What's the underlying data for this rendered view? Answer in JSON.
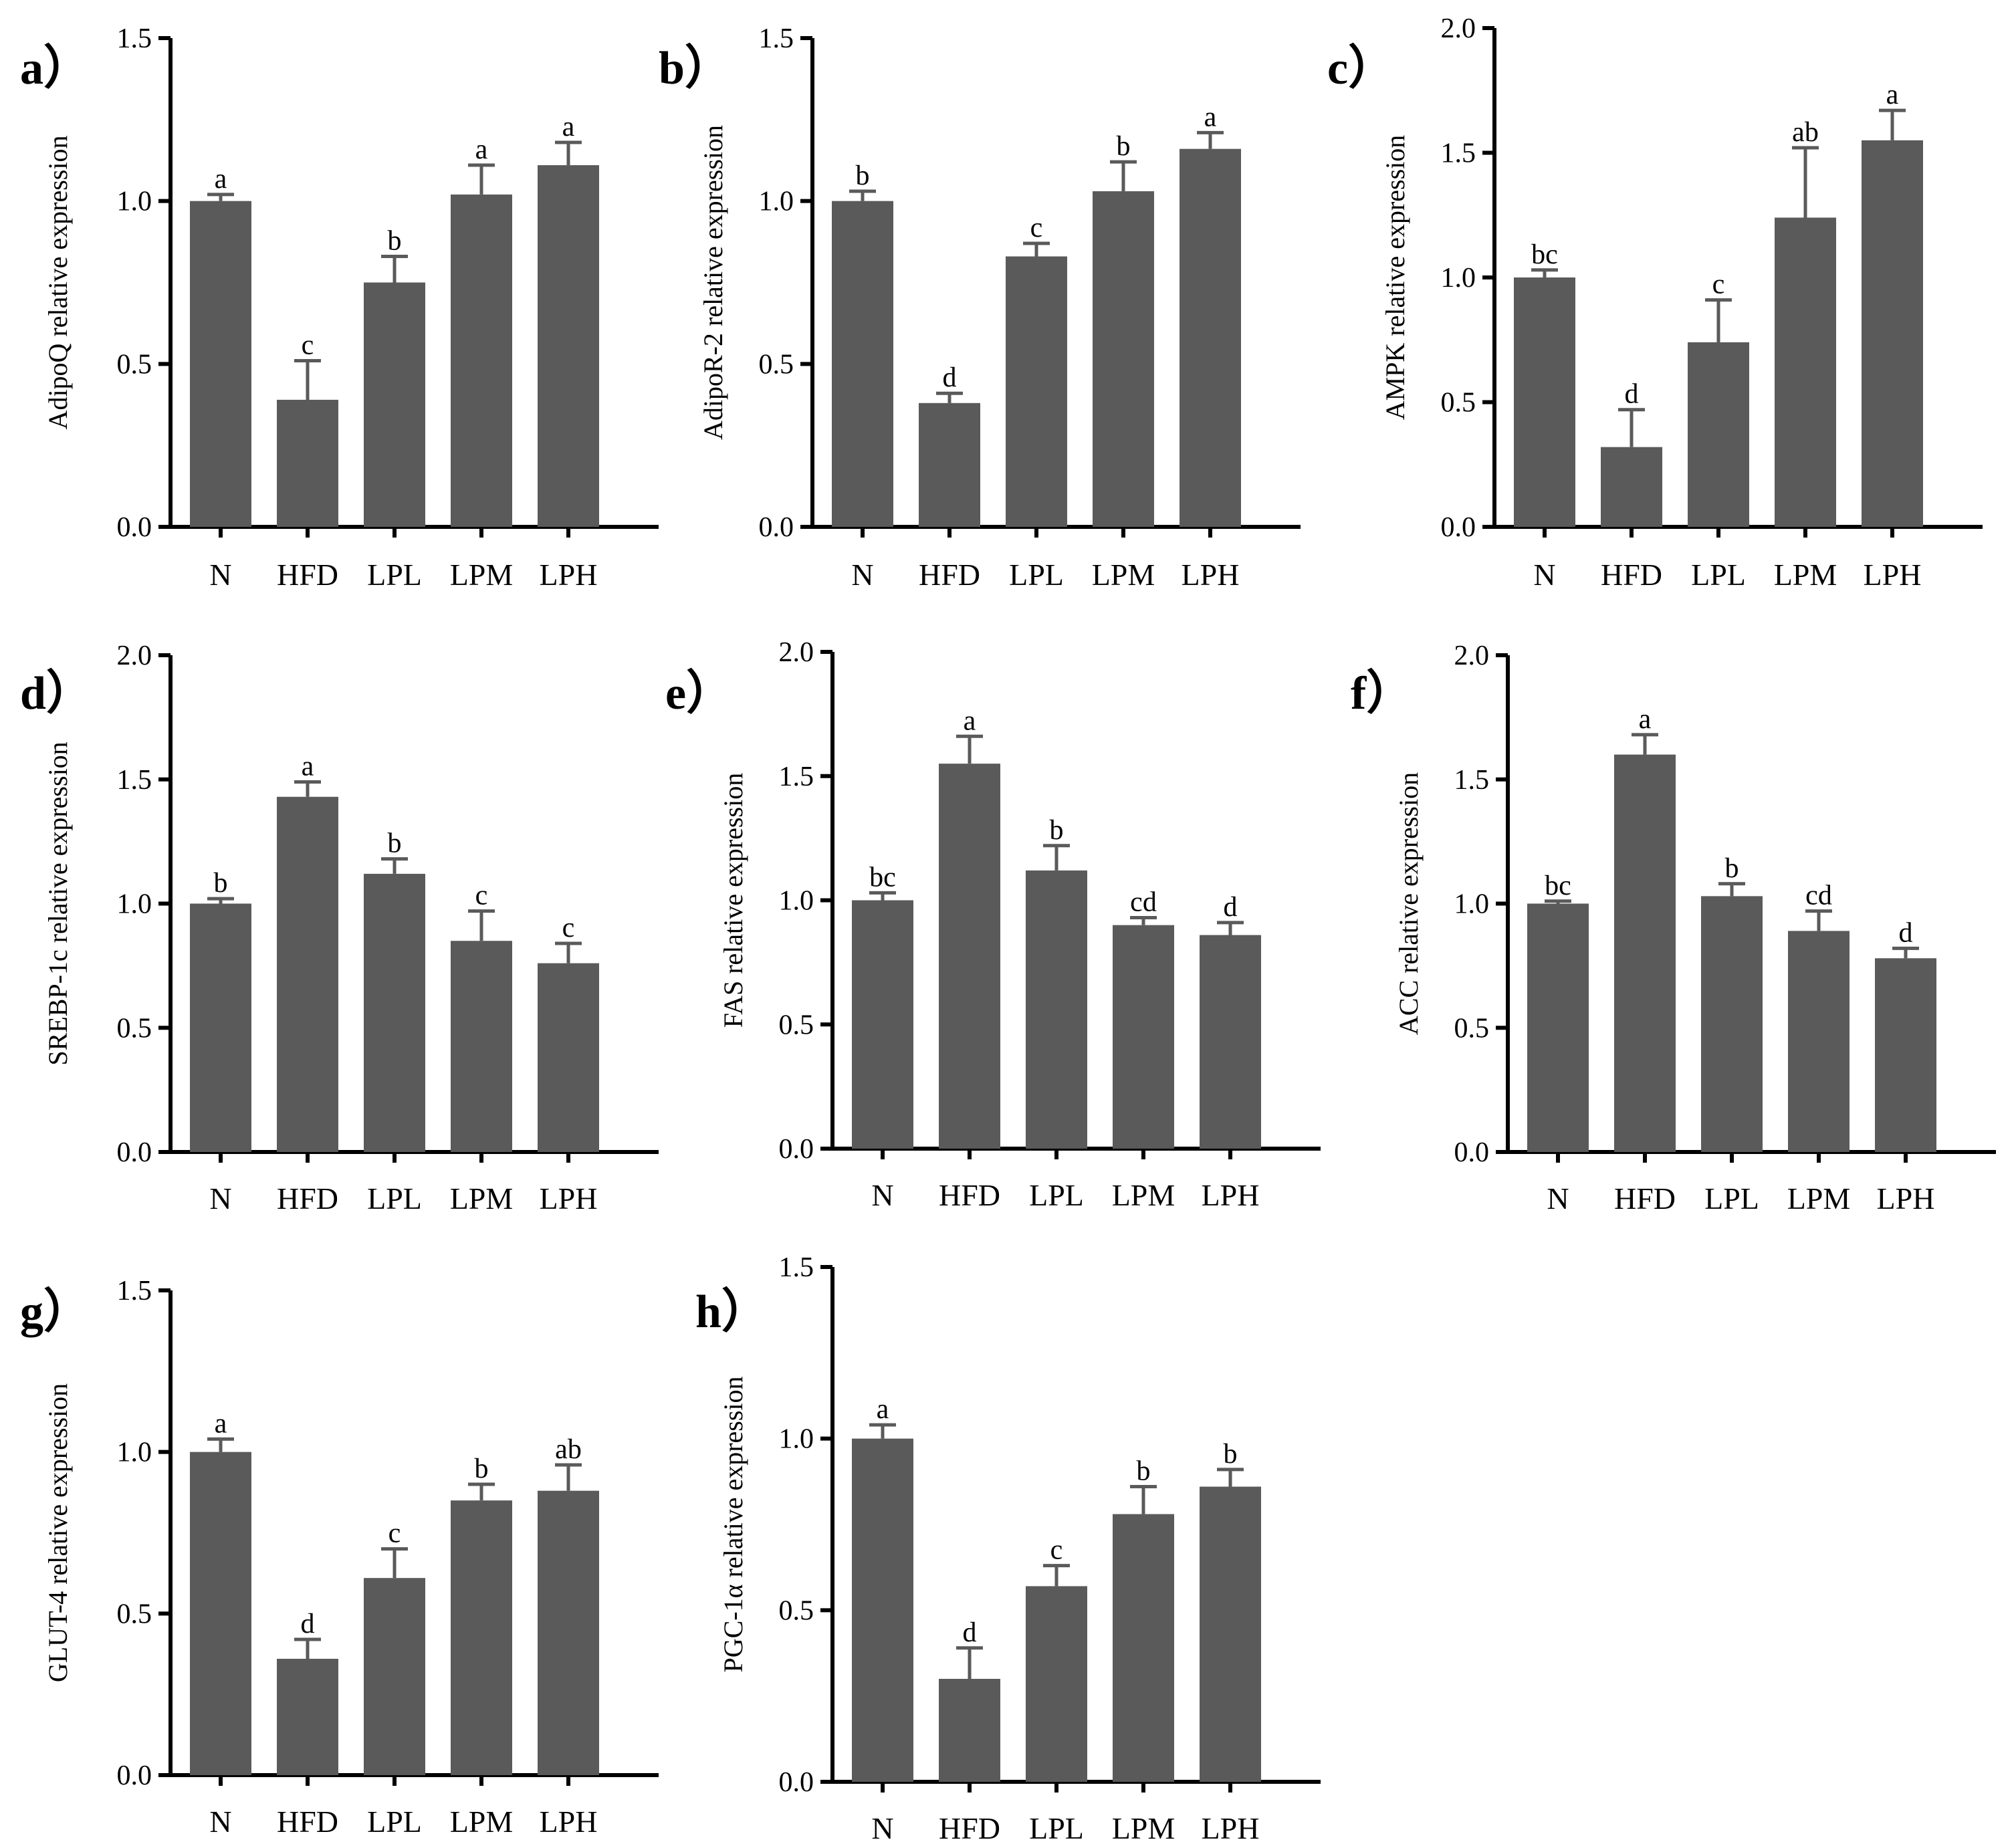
{
  "figure": {
    "description_title": ""
  },
  "chart_data": [
    {
      "type": "bar",
      "panel_label": "a）",
      "ylabel": "AdipoQ relative expression",
      "categories": [
        "N",
        "HFD",
        "LPL",
        "LPM",
        "LPH"
      ],
      "values": [
        1.0,
        0.39,
        0.75,
        1.02,
        1.11
      ],
      "errors": [
        0.02,
        0.12,
        0.08,
        0.09,
        0.07
      ],
      "significance": [
        "a",
        "c",
        "b",
        "a",
        "a"
      ],
      "ylim": [
        0,
        1.5
      ],
      "yticks": [
        "0.0",
        "0.5",
        "1.0",
        "1.5"
      ],
      "ytick_values": [
        0,
        0.5,
        1.0,
        1.5
      ]
    },
    {
      "type": "bar",
      "panel_label": "b）",
      "ylabel": "AdipoR-2 relative expression",
      "categories": [
        "N",
        "HFD",
        "LPL",
        "LPM",
        "LPH"
      ],
      "values": [
        1.0,
        0.38,
        0.83,
        1.03,
        1.16
      ],
      "errors": [
        0.03,
        0.03,
        0.04,
        0.09,
        0.05
      ],
      "significance": [
        "b",
        "d",
        "c",
        "b",
        "a"
      ],
      "ylim": [
        0,
        1.5
      ],
      "yticks": [
        "0.0",
        "0.5",
        "1.0",
        "1.5"
      ],
      "ytick_values": [
        0,
        0.5,
        1.0,
        1.5
      ]
    },
    {
      "type": "bar",
      "panel_label": "c）",
      "ylabel": "AMPK relative expression",
      "categories": [
        "N",
        "HFD",
        "LPL",
        "LPM",
        "LPH"
      ],
      "values": [
        1.0,
        0.32,
        0.74,
        1.24,
        1.55
      ],
      "errors": [
        0.03,
        0.15,
        0.17,
        0.28,
        0.12
      ],
      "significance": [
        "bc",
        "d",
        "c",
        "ab",
        "a"
      ],
      "ylim": [
        0,
        2.0
      ],
      "yticks": [
        "0.0",
        "0.5",
        "1.0",
        "1.5",
        "2.0"
      ],
      "ytick_values": [
        0,
        0.5,
        1.0,
        1.5,
        2.0
      ]
    },
    {
      "type": "bar",
      "panel_label": "d）",
      "ylabel": "SREBP-1c relative expression",
      "categories": [
        "N",
        "HFD",
        "LPL",
        "LPM",
        "LPH"
      ],
      "values": [
        1.0,
        1.43,
        1.12,
        0.85,
        0.76
      ],
      "errors": [
        0.02,
        0.06,
        0.06,
        0.12,
        0.08
      ],
      "significance": [
        "b",
        "a",
        "b",
        "c",
        "c"
      ],
      "ylim": [
        0,
        2.0
      ],
      "yticks": [
        "0.0",
        "0.5",
        "1.0",
        "1.5",
        "2.0"
      ],
      "ytick_values": [
        0,
        0.5,
        1.0,
        1.5,
        2.0
      ]
    },
    {
      "type": "bar",
      "panel_label": "e）",
      "ylabel": "FAS relative expression",
      "categories": [
        "N",
        "HFD",
        "LPL",
        "LPM",
        "LPH"
      ],
      "values": [
        1.0,
        1.55,
        1.12,
        0.9,
        0.86
      ],
      "errors": [
        0.03,
        0.11,
        0.1,
        0.03,
        0.05
      ],
      "significance": [
        "bc",
        "a",
        "b",
        "cd",
        "d"
      ],
      "ylim": [
        0,
        2.0
      ],
      "yticks": [
        "0.0",
        "0.5",
        "1.0",
        "1.5",
        "2.0"
      ],
      "ytick_values": [
        0,
        0.5,
        1.0,
        1.5,
        2.0
      ]
    },
    {
      "type": "bar",
      "panel_label": "f）",
      "ylabel": "ACC relative expression",
      "categories": [
        "N",
        "HFD",
        "LPL",
        "LPM",
        "LPH"
      ],
      "values": [
        1.0,
        1.6,
        1.03,
        0.89,
        0.78
      ],
      "errors": [
        0.01,
        0.08,
        0.05,
        0.08,
        0.04
      ],
      "significance": [
        "bc",
        "a",
        "b",
        "cd",
        "d"
      ],
      "ylim": [
        0,
        2.0
      ],
      "yticks": [
        "0.0",
        "0.5",
        "1.0",
        "1.5",
        "2.0"
      ],
      "ytick_values": [
        0,
        0.5,
        1.0,
        1.5,
        2.0
      ]
    },
    {
      "type": "bar",
      "panel_label": "g）",
      "ylabel": "GLUT-4 relative expression",
      "categories": [
        "N",
        "HFD",
        "LPL",
        "LPM",
        "LPH"
      ],
      "values": [
        1.0,
        0.36,
        0.61,
        0.85,
        0.88
      ],
      "errors": [
        0.04,
        0.06,
        0.09,
        0.05,
        0.08
      ],
      "significance": [
        "a",
        "d",
        "c",
        "b",
        "ab"
      ],
      "ylim": [
        0,
        1.5
      ],
      "yticks": [
        "0.0",
        "0.5",
        "1.0",
        "1.5"
      ],
      "ytick_values": [
        0,
        0.5,
        1.0,
        1.5
      ]
    },
    {
      "type": "bar",
      "panel_label": "h）",
      "ylabel": "PGC-1α relative expression",
      "categories": [
        "N",
        "HFD",
        "LPL",
        "LPM",
        "LPH"
      ],
      "values": [
        1.0,
        0.3,
        0.57,
        0.78,
        0.86
      ],
      "errors": [
        0.04,
        0.09,
        0.06,
        0.08,
        0.05
      ],
      "significance": [
        "a",
        "d",
        "c",
        "b",
        "b"
      ],
      "ylim": [
        0,
        1.5
      ],
      "yticks": [
        "0.0",
        "0.5",
        "1.0",
        "1.5"
      ],
      "ytick_values": [
        0,
        0.5,
        1.0,
        1.5
      ]
    }
  ]
}
